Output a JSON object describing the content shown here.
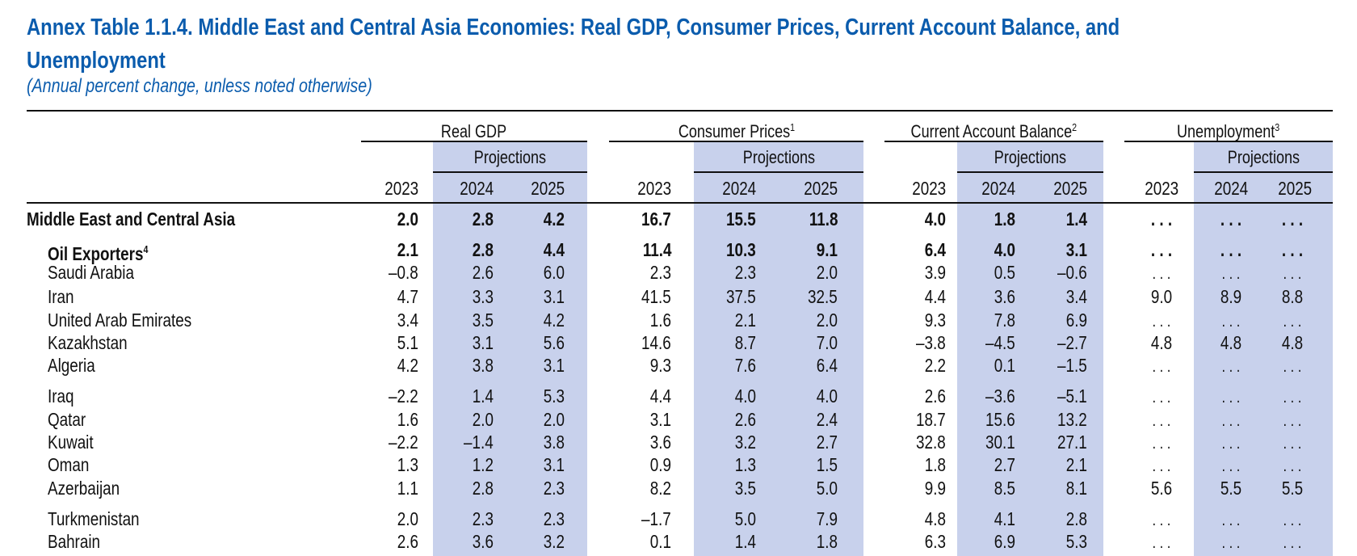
{
  "title": {
    "line1": "Annex Table 1.1.4. Middle East and Central Asia Economies: Real GDP, Consumer Prices, Current Account Balance, and",
    "line2": "Unemployment",
    "subtitle": "(Annual percent change, unless noted otherwise)"
  },
  "colors": {
    "title": "#0b5cad",
    "projection_shade": "#c8d1ec",
    "rule": "#111111"
  },
  "header": {
    "groups": [
      {
        "label": "Real GDP",
        "footnote": ""
      },
      {
        "label": "Consumer Prices",
        "footnote": "1"
      },
      {
        "label": "Current Account Balance",
        "footnote": "2"
      },
      {
        "label": "Unemployment",
        "footnote": "3"
      }
    ],
    "projections_label": "Projections",
    "years": [
      "2023",
      "2024",
      "2025"
    ]
  },
  "rows": [
    {
      "label": "Middle East and Central Asia",
      "footnote": "",
      "style": "total",
      "gdp": [
        "2.0",
        "2.8",
        "4.2"
      ],
      "cpi": [
        "16.7",
        "15.5",
        "11.8"
      ],
      "cab": [
        "4.0",
        "1.8",
        "1.4"
      ],
      "unemp": [
        "...",
        "...",
        "..."
      ]
    },
    {
      "label": "Oil Exporters",
      "footnote": "4",
      "style": "subtotal",
      "gdp": [
        "2.1",
        "2.8",
        "4.4"
      ],
      "cpi": [
        "11.4",
        "10.3",
        "9.1"
      ],
      "cab": [
        "6.4",
        "4.0",
        "3.1"
      ],
      "unemp": [
        "...",
        "...",
        "..."
      ]
    },
    {
      "label": "Saudi Arabia",
      "footnote": "",
      "style": "country",
      "gdp": [
        "–0.8",
        "2.6",
        "6.0"
      ],
      "cpi": [
        "2.3",
        "2.3",
        "2.0"
      ],
      "cab": [
        "3.9",
        "0.5",
        "–0.6"
      ],
      "unemp": [
        "...",
        "...",
        "..."
      ]
    },
    {
      "label": "Iran",
      "footnote": "",
      "style": "country",
      "gdp": [
        "4.7",
        "3.3",
        "3.1"
      ],
      "cpi": [
        "41.5",
        "37.5",
        "32.5"
      ],
      "cab": [
        "4.4",
        "3.6",
        "3.4"
      ],
      "unemp": [
        "9.0",
        "8.9",
        "8.8"
      ]
    },
    {
      "label": "United Arab Emirates",
      "footnote": "",
      "style": "country",
      "gdp": [
        "3.4",
        "3.5",
        "4.2"
      ],
      "cpi": [
        "1.6",
        "2.1",
        "2.0"
      ],
      "cab": [
        "9.3",
        "7.8",
        "6.9"
      ],
      "unemp": [
        "...",
        "...",
        "..."
      ]
    },
    {
      "label": "Kazakhstan",
      "footnote": "",
      "style": "country",
      "gdp": [
        "5.1",
        "3.1",
        "5.6"
      ],
      "cpi": [
        "14.6",
        "8.7",
        "7.0"
      ],
      "cab": [
        "–3.8",
        "–4.5",
        "–2.7"
      ],
      "unemp": [
        "4.8",
        "4.8",
        "4.8"
      ]
    },
    {
      "label": "Algeria",
      "footnote": "",
      "style": "country",
      "gdp": [
        "4.2",
        "3.8",
        "3.1"
      ],
      "cpi": [
        "9.3",
        "7.6",
        "6.4"
      ],
      "cab": [
        "2.2",
        "0.1",
        "–1.5"
      ],
      "unemp": [
        "...",
        "...",
        "..."
      ]
    },
    {
      "label": "Iraq",
      "footnote": "",
      "style": "country",
      "gdp": [
        "–2.2",
        "1.4",
        "5.3"
      ],
      "cpi": [
        "4.4",
        "4.0",
        "4.0"
      ],
      "cab": [
        "2.6",
        "–3.6",
        "–5.1"
      ],
      "unemp": [
        "...",
        "...",
        "..."
      ]
    },
    {
      "label": "Qatar",
      "footnote": "",
      "style": "country",
      "gdp": [
        "1.6",
        "2.0",
        "2.0"
      ],
      "cpi": [
        "3.1",
        "2.6",
        "2.4"
      ],
      "cab": [
        "18.7",
        "15.6",
        "13.2"
      ],
      "unemp": [
        "...",
        "...",
        "..."
      ]
    },
    {
      "label": "Kuwait",
      "footnote": "",
      "style": "country",
      "gdp": [
        "–2.2",
        "–1.4",
        "3.8"
      ],
      "cpi": [
        "3.6",
        "3.2",
        "2.7"
      ],
      "cab": [
        "32.8",
        "30.1",
        "27.1"
      ],
      "unemp": [
        "...",
        "...",
        "..."
      ]
    },
    {
      "label": "Oman",
      "footnote": "",
      "style": "country",
      "gdp": [
        "1.3",
        "1.2",
        "3.1"
      ],
      "cpi": [
        "0.9",
        "1.3",
        "1.5"
      ],
      "cab": [
        "1.8",
        "2.7",
        "2.1"
      ],
      "unemp": [
        "...",
        "...",
        "..."
      ]
    },
    {
      "label": "Azerbaijan",
      "footnote": "",
      "style": "country",
      "gdp": [
        "1.1",
        "2.8",
        "2.3"
      ],
      "cpi": [
        "8.2",
        "3.5",
        "5.0"
      ],
      "cab": [
        "9.9",
        "8.5",
        "8.1"
      ],
      "unemp": [
        "5.6",
        "5.5",
        "5.5"
      ]
    },
    {
      "label": "Turkmenistan",
      "footnote": "",
      "style": "country",
      "gdp": [
        "2.0",
        "2.3",
        "2.3"
      ],
      "cpi": [
        "–1.7",
        "5.0",
        "7.9"
      ],
      "cab": [
        "4.8",
        "4.1",
        "2.8"
      ],
      "unemp": [
        "...",
        "...",
        "..."
      ]
    },
    {
      "label": "Bahrain",
      "footnote": "",
      "style": "country",
      "gdp": [
        "2.6",
        "3.6",
        "3.2"
      ],
      "cpi": [
        "0.1",
        "1.4",
        "1.8"
      ],
      "cab": [
        "6.3",
        "6.9",
        "5.3"
      ],
      "unemp": [
        "...",
        "...",
        "..."
      ]
    }
  ]
}
